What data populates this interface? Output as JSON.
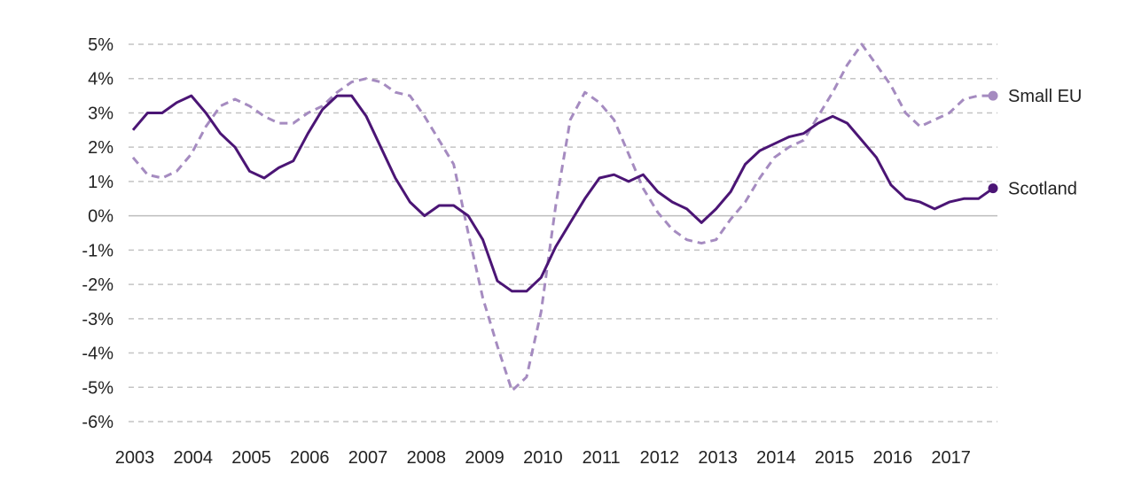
{
  "chart_data": {
    "type": "line",
    "title": "",
    "xlabel": "",
    "ylabel": "",
    "ylim": [
      -6,
      5
    ],
    "yticks": [
      5,
      4,
      3,
      2,
      1,
      0,
      -1,
      -2,
      -3,
      -4,
      -5,
      -6
    ],
    "ytick_labels": [
      "5%",
      "4%",
      "3%",
      "2%",
      "1%",
      "0%",
      "-1%",
      "-2%",
      "-3%",
      "-4%",
      "-5%",
      "-6%"
    ],
    "xlim": [
      2003,
      2017.75
    ],
    "xtick_labels": [
      "2003",
      "2004",
      "2005",
      "2006",
      "2007",
      "2008",
      "2009",
      "2010",
      "2011",
      "2012",
      "2013",
      "2014",
      "2015",
      "2016",
      "2017"
    ],
    "grid": true,
    "legend": "end-of-line labels",
    "series": [
      {
        "name": "Small EU",
        "color": "#a58bc0",
        "dash": true,
        "x": [
          2003,
          2003.25,
          2003.5,
          2003.75,
          2004,
          2004.25,
          2004.5,
          2004.75,
          2005,
          2005.25,
          2005.5,
          2005.75,
          2006,
          2006.25,
          2006.5,
          2006.75,
          2007,
          2007.25,
          2007.5,
          2007.75,
          2008,
          2008.25,
          2008.5,
          2008.75,
          2009,
          2009.25,
          2009.5,
          2009.75,
          2010,
          2010.25,
          2010.5,
          2010.75,
          2011,
          2011.25,
          2011.5,
          2011.75,
          2012,
          2012.25,
          2012.5,
          2012.75,
          2013,
          2013.25,
          2013.5,
          2013.75,
          2014,
          2014.25,
          2014.5,
          2014.75,
          2015,
          2015.25,
          2015.5,
          2015.75,
          2016,
          2016.25,
          2016.5,
          2016.75,
          2017,
          2017.25,
          2017.5,
          2017.75
        ],
        "y": [
          1.7,
          1.2,
          1.1,
          1.3,
          1.8,
          2.6,
          3.2,
          3.4,
          3.2,
          2.9,
          2.7,
          2.7,
          3.0,
          3.2,
          3.6,
          3.9,
          4.0,
          3.9,
          3.6,
          3.5,
          2.9,
          2.2,
          1.5,
          -0.5,
          -2.4,
          -3.8,
          -5.1,
          -4.7,
          -2.8,
          0.3,
          2.8,
          3.6,
          3.3,
          2.8,
          1.8,
          0.8,
          0.1,
          -0.4,
          -0.7,
          -0.8,
          -0.7,
          -0.1,
          0.4,
          1.1,
          1.7,
          2.0,
          2.2,
          2.9,
          3.6,
          4.4,
          5.0,
          4.4,
          3.8,
          3.0,
          2.6,
          2.8,
          3.0,
          3.4,
          3.5,
          3.5
        ]
      },
      {
        "name": "Scotland",
        "color": "#4b1575",
        "dash": false,
        "x": [
          2003,
          2003.25,
          2003.5,
          2003.75,
          2004,
          2004.25,
          2004.5,
          2004.75,
          2005,
          2005.25,
          2005.5,
          2005.75,
          2006,
          2006.25,
          2006.5,
          2006.75,
          2007,
          2007.25,
          2007.5,
          2007.75,
          2008,
          2008.25,
          2008.5,
          2008.75,
          2009,
          2009.25,
          2009.5,
          2009.75,
          2010,
          2010.25,
          2010.5,
          2010.75,
          2011,
          2011.25,
          2011.5,
          2011.75,
          2012,
          2012.25,
          2012.5,
          2012.75,
          2013,
          2013.25,
          2013.5,
          2013.75,
          2014,
          2014.25,
          2014.5,
          2014.75,
          2015,
          2015.25,
          2015.5,
          2015.75,
          2016,
          2016.25,
          2016.5,
          2016.75,
          2017,
          2017.25,
          2017.5,
          2017.75
        ],
        "y": [
          2.5,
          3.0,
          3.0,
          3.3,
          3.5,
          3.0,
          2.4,
          2.0,
          1.3,
          1.1,
          1.4,
          1.6,
          2.4,
          3.1,
          3.5,
          3.5,
          2.9,
          2.0,
          1.1,
          0.4,
          0.0,
          0.3,
          0.3,
          0.0,
          -0.7,
          -1.9,
          -2.2,
          -2.2,
          -1.8,
          -0.9,
          -0.2,
          0.5,
          1.1,
          1.2,
          1.0,
          1.2,
          0.7,
          0.4,
          0.2,
          -0.2,
          0.2,
          0.7,
          1.5,
          1.9,
          2.1,
          2.3,
          2.4,
          2.7,
          2.9,
          2.7,
          2.2,
          1.7,
          0.9,
          0.5,
          0.4,
          0.2,
          0.4,
          0.5,
          0.5,
          0.8
        ]
      }
    ]
  }
}
